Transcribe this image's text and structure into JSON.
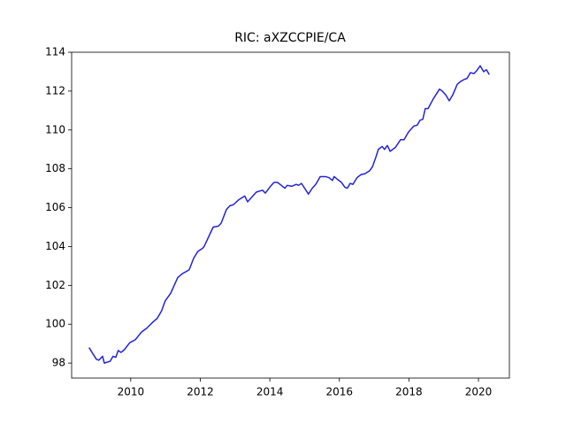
{
  "chart_data": {
    "type": "line",
    "title": "RIC: aXZCCPIE/CA",
    "color": "#2323dd",
    "x": [
      2008.8,
      2009.01,
      2009.08,
      2009.19,
      2009.24,
      2009.41,
      2009.49,
      2009.57,
      2009.64,
      2009.72,
      2009.82,
      2009.97,
      2010.13,
      2010.31,
      2010.46,
      2010.66,
      2010.76,
      2010.89,
      2010.99,
      2011.15,
      2011.35,
      2011.48,
      2011.68,
      2011.81,
      2011.93,
      2012.06,
      2012.11,
      2012.37,
      2012.52,
      2012.6,
      2012.75,
      2012.85,
      2012.95,
      2013.1,
      2013.28,
      2013.36,
      2013.61,
      2013.79,
      2013.87,
      2014.02,
      2014.12,
      2014.22,
      2014.33,
      2014.43,
      2014.5,
      2014.63,
      2014.76,
      2014.83,
      2014.91,
      2015.11,
      2015.22,
      2015.32,
      2015.45,
      2015.6,
      2015.7,
      2015.8,
      2015.85,
      2015.95,
      2016.06,
      2016.16,
      2016.23,
      2016.31,
      2016.39,
      2016.51,
      2016.62,
      2016.74,
      2016.87,
      2016.95,
      2017.05,
      2017.12,
      2017.23,
      2017.3,
      2017.38,
      2017.46,
      2017.61,
      2017.76,
      2017.86,
      2017.99,
      2018.14,
      2018.24,
      2018.32,
      2018.4,
      2018.47,
      2018.55,
      2018.7,
      2018.88,
      2018.96,
      2019.06,
      2019.16,
      2019.26,
      2019.39,
      2019.49,
      2019.59,
      2019.67,
      2019.77,
      2019.87,
      2019.95,
      2020.05,
      2020.15,
      2020.23,
      2020.31
    ],
    "values": [
      98.8,
      98.2,
      98.15,
      98.35,
      98.0,
      98.1,
      98.35,
      98.3,
      98.65,
      98.55,
      98.7,
      99.05,
      99.2,
      99.6,
      99.8,
      100.15,
      100.3,
      100.7,
      101.2,
      101.6,
      102.4,
      102.6,
      102.8,
      103.4,
      103.75,
      103.9,
      104.0,
      105.0,
      105.05,
      105.2,
      105.9,
      106.1,
      106.15,
      106.4,
      106.6,
      106.3,
      106.8,
      106.9,
      106.75,
      107.1,
      107.3,
      107.3,
      107.15,
      107.0,
      107.15,
      107.1,
      107.2,
      107.15,
      107.25,
      106.7,
      107.0,
      107.2,
      107.6,
      107.6,
      107.55,
      107.4,
      107.6,
      107.45,
      107.3,
      107.05,
      107.0,
      107.25,
      107.2,
      107.55,
      107.7,
      107.75,
      107.9,
      108.1,
      108.6,
      109.0,
      109.15,
      109.0,
      109.2,
      108.9,
      109.1,
      109.5,
      109.5,
      109.9,
      110.2,
      110.25,
      110.5,
      110.55,
      111.1,
      111.1,
      111.6,
      112.1,
      112.0,
      111.8,
      111.5,
      111.8,
      112.35,
      112.5,
      112.6,
      112.65,
      112.95,
      112.9,
      113.05,
      113.3,
      113.0,
      113.1,
      112.85
    ],
    "xlim": [
      2008.3,
      2020.89
    ],
    "xticks": [
      2010,
      2012,
      2014,
      2016,
      2018,
      2020
    ],
    "ylim": [
      97.23,
      114.0
    ],
    "yticks": [
      98,
      100,
      102,
      104,
      106,
      108,
      110,
      112,
      114
    ]
  }
}
